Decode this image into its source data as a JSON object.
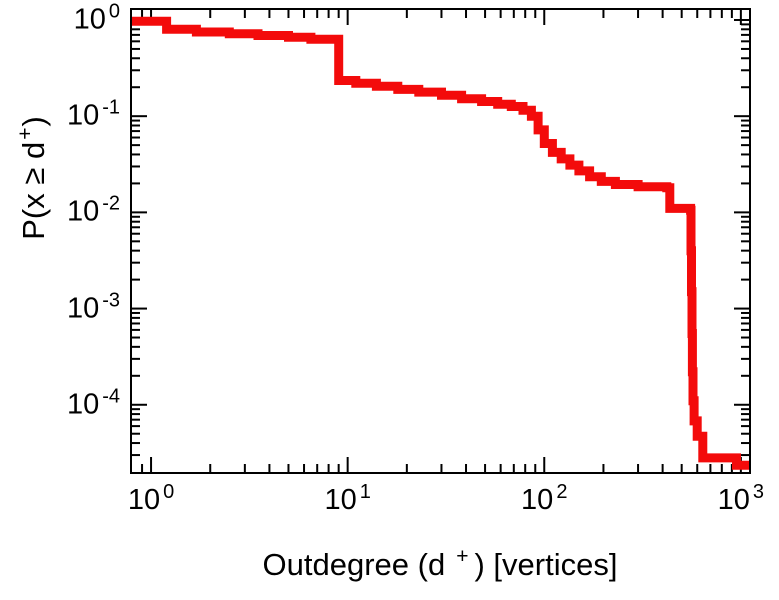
{
  "figure": {
    "background": "#ffffff",
    "frame_color": "#000000",
    "tick_color": "#000000"
  },
  "axes": {
    "tick_base": "10",
    "x": {
      "label_pre": "Outdegree (d",
      "label_sup": "+",
      "label_post": ") [vertices]",
      "tick_exponents": [
        0,
        1,
        2,
        3
      ]
    },
    "y": {
      "label_pre": "P(x ≥ d",
      "label_sup": "+",
      "label_post": ")",
      "tick_exponents": [
        0,
        -1,
        -2,
        -3,
        -4
      ]
    }
  },
  "chart_data": {
    "type": "line",
    "subtype": "ccdf-step",
    "title": "",
    "xlabel": "Outdegree (d+) [vertices]",
    "ylabel": "P(x >= d+)",
    "x_scale": "log",
    "y_scale": "log",
    "xlim": [
      0.8,
      1100
    ],
    "ylim": [
      2e-05,
      1.27
    ],
    "grid": false,
    "legend": null,
    "line_color": "#f30b0b",
    "line_width": 9,
    "step_mode": "post",
    "points": [
      [
        0.8,
        0.97
      ],
      [
        1.2,
        0.8
      ],
      [
        1.7,
        0.75
      ],
      [
        2.5,
        0.72
      ],
      [
        3.5,
        0.69
      ],
      [
        5,
        0.66
      ],
      [
        6.5,
        0.63
      ],
      [
        9,
        0.235
      ],
      [
        11,
        0.22
      ],
      [
        14,
        0.205
      ],
      [
        18,
        0.19
      ],
      [
        23,
        0.178
      ],
      [
        30,
        0.165
      ],
      [
        38,
        0.152
      ],
      [
        48,
        0.142
      ],
      [
        58,
        0.133
      ],
      [
        68,
        0.126
      ],
      [
        78,
        0.115
      ],
      [
        86,
        0.1
      ],
      [
        93,
        0.072
      ],
      [
        100,
        0.052
      ],
      [
        110,
        0.042
      ],
      [
        122,
        0.036
      ],
      [
        135,
        0.031
      ],
      [
        150,
        0.027
      ],
      [
        170,
        0.0235
      ],
      [
        195,
        0.021
      ],
      [
        230,
        0.0195
      ],
      [
        300,
        0.0185
      ],
      [
        420,
        0.018
      ],
      [
        435,
        0.011
      ],
      [
        555,
        0.0105
      ],
      [
        558,
        0.004
      ],
      [
        561,
        0.0015
      ],
      [
        564,
        0.00055
      ],
      [
        567,
        0.00022
      ],
      [
        571,
        0.00011
      ],
      [
        578,
        6.8e-05
      ],
      [
        600,
        4.7e-05
      ],
      [
        640,
        2.8e-05
      ],
      [
        950,
        2.35e-05
      ]
    ]
  }
}
